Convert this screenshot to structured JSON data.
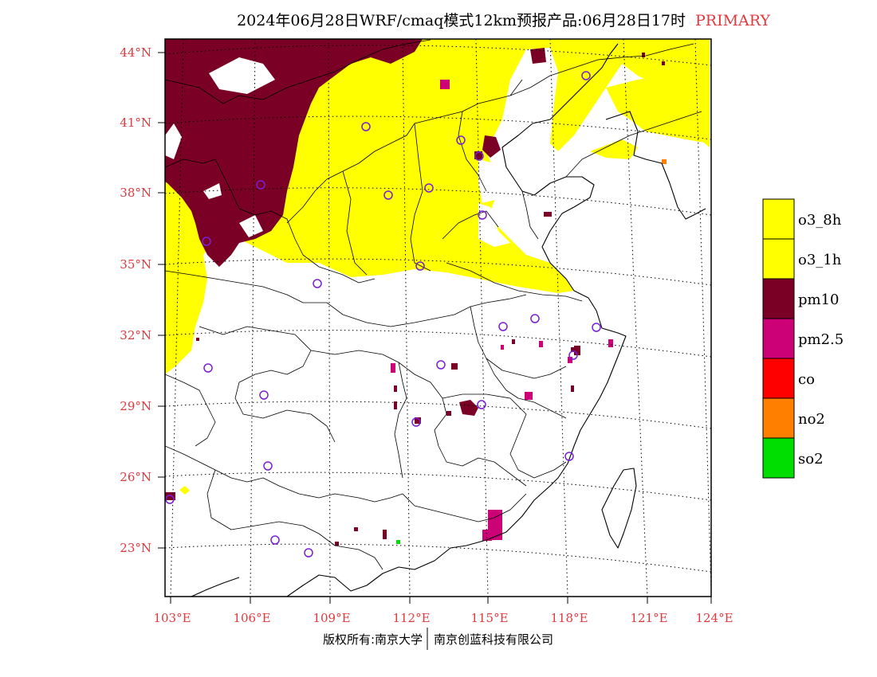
{
  "title": {
    "main": "2024年06月28日WRF/cmaq模式12km预报产品:06月28日17时",
    "tag": "PRIMARY"
  },
  "axes": {
    "lat_labels": [
      "44°N",
      "41°N",
      "38°N",
      "35°N",
      "32°N",
      "29°N",
      "26°N",
      "23°N"
    ],
    "lon_labels": [
      "103°E",
      "106°E",
      "109°E",
      "112°E",
      "115°E",
      "118°E",
      "121°E",
      "124°E"
    ],
    "lat_values": [
      44,
      41,
      38,
      35,
      32,
      29,
      26,
      23
    ],
    "lon_values": [
      103,
      106,
      109,
      112,
      115,
      118,
      121,
      124
    ],
    "lon_range": [
      103,
      124
    ],
    "lat_range": [
      21,
      45
    ],
    "grid": true
  },
  "legend": {
    "position": "right",
    "items": [
      {
        "label": "o3_8h",
        "color": "#ffff00"
      },
      {
        "label": "o3_1h",
        "color": "#ffff00"
      },
      {
        "label": "pm10",
        "color": "#7a0026"
      },
      {
        "label": "pm2.5",
        "color": "#cc0077"
      },
      {
        "label": "co",
        "color": "#ff0000"
      },
      {
        "label": "no2",
        "color": "#ff7f00"
      },
      {
        "label": "so2",
        "color": "#00dd00"
      }
    ]
  },
  "footer": {
    "left": "版权所有:南京大学",
    "right": "南京创蓝科技有限公司"
  },
  "colors": {
    "o3": "#ffff00",
    "pm10": "#7a0026",
    "pm25": "#cc0077",
    "no2": "#ff7f00",
    "so2": "#00dd00",
    "station": "#7a1fd6",
    "label_red": "#e0393e"
  }
}
